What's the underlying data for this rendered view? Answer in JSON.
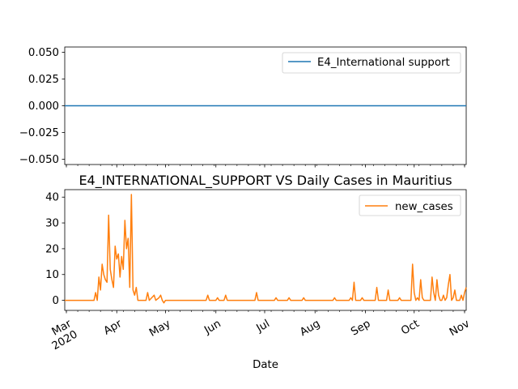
{
  "chart_data": [
    {
      "type": "line",
      "title": "",
      "xlabel": "",
      "ylabel": "",
      "ylim": [
        -0.055,
        0.055
      ],
      "yticks": [
        -0.05,
        -0.025,
        0.0,
        0.025,
        0.05
      ],
      "ytick_labels": [
        "−0.050",
        "−0.025",
        "0.000",
        "0.025",
        "0.050"
      ],
      "legend": {
        "placement": "upper-right",
        "entries": [
          "E4_International support"
        ]
      },
      "grid": false,
      "series": [
        {
          "name": "E4_International support",
          "color": "#1f77b4",
          "x": [
            "2020-02-29",
            "2020-11-02"
          ],
          "values": [
            0,
            0
          ]
        }
      ]
    },
    {
      "type": "line",
      "title": "E4_INTERNATIONAL_SUPPORT VS Daily Cases in Mauritius",
      "xlabel": "Date",
      "ylabel": "",
      "ylim": [
        -3.9,
        42.9
      ],
      "yticks": [
        0,
        10,
        20,
        30,
        40
      ],
      "ytick_labels": [
        "0",
        "10",
        "20",
        "30",
        "40"
      ],
      "xlim": [
        "2020-02-29",
        "2020-11-02"
      ],
      "xticks": [
        "2020-03-01",
        "2020-04-01",
        "2020-05-01",
        "2020-06-01",
        "2020-07-01",
        "2020-08-01",
        "2020-09-01",
        "2020-10-01",
        "2020-11-01"
      ],
      "xtick_labels": [
        "Mar\n2020",
        "Apr",
        "May",
        "Jun",
        "Jul",
        "Aug",
        "Sep",
        "Oct",
        "Nov"
      ],
      "legend": {
        "placement": "upper-right",
        "entries": [
          "new_cases"
        ]
      },
      "grid": false,
      "series": [
        {
          "name": "new_cases",
          "color": "#ff7f0e",
          "points": [
            [
              "2020-02-29",
              0
            ],
            [
              "2020-03-18",
              0
            ],
            [
              "2020-03-19",
              3
            ],
            [
              "2020-03-20",
              0
            ],
            [
              "2020-03-21",
              9
            ],
            [
              "2020-03-22",
              4
            ],
            [
              "2020-03-23",
              14
            ],
            [
              "2020-03-24",
              10
            ],
            [
              "2020-03-25",
              8
            ],
            [
              "2020-03-26",
              7
            ],
            [
              "2020-03-27",
              33
            ],
            [
              "2020-03-28",
              12
            ],
            [
              "2020-03-29",
              8
            ],
            [
              "2020-03-30",
              5
            ],
            [
              "2020-03-31",
              21
            ],
            [
              "2020-04-01",
              16
            ],
            [
              "2020-04-02",
              18
            ],
            [
              "2020-04-03",
              9
            ],
            [
              "2020-04-04",
              17
            ],
            [
              "2020-04-05",
              12
            ],
            [
              "2020-04-06",
              31
            ],
            [
              "2020-04-07",
              20
            ],
            [
              "2020-04-08",
              24
            ],
            [
              "2020-04-09",
              5
            ],
            [
              "2020-04-10",
              41
            ],
            [
              "2020-04-11",
              4
            ],
            [
              "2020-04-12",
              2
            ],
            [
              "2020-04-13",
              5
            ],
            [
              "2020-04-14",
              0
            ],
            [
              "2020-04-19",
              0
            ],
            [
              "2020-04-20",
              3
            ],
            [
              "2020-04-21",
              0
            ],
            [
              "2020-04-24",
              2
            ],
            [
              "2020-04-25",
              0
            ],
            [
              "2020-04-27",
              1
            ],
            [
              "2020-04-28",
              2
            ],
            [
              "2020-04-29",
              0
            ],
            [
              "2020-04-30",
              -1
            ],
            [
              "2020-05-01",
              0
            ],
            [
              "2020-05-26",
              0
            ],
            [
              "2020-05-27",
              2
            ],
            [
              "2020-05-28",
              0
            ],
            [
              "2020-06-01",
              0
            ],
            [
              "2020-06-02",
              1
            ],
            [
              "2020-06-03",
              0
            ],
            [
              "2020-06-06",
              0
            ],
            [
              "2020-06-07",
              2
            ],
            [
              "2020-06-08",
              0
            ],
            [
              "2020-06-25",
              0
            ],
            [
              "2020-06-26",
              3
            ],
            [
              "2020-06-27",
              0
            ],
            [
              "2020-07-07",
              0
            ],
            [
              "2020-07-08",
              1
            ],
            [
              "2020-07-09",
              0
            ],
            [
              "2020-07-15",
              0
            ],
            [
              "2020-07-16",
              1
            ],
            [
              "2020-07-17",
              0
            ],
            [
              "2020-07-24",
              0
            ],
            [
              "2020-07-25",
              1
            ],
            [
              "2020-07-26",
              0
            ],
            [
              "2020-08-12",
              0
            ],
            [
              "2020-08-13",
              1
            ],
            [
              "2020-08-14",
              0
            ],
            [
              "2020-08-22",
              0
            ],
            [
              "2020-08-23",
              1
            ],
            [
              "2020-08-24",
              0
            ],
            [
              "2020-08-25",
              7
            ],
            [
              "2020-08-26",
              0
            ],
            [
              "2020-08-29",
              0
            ],
            [
              "2020-08-30",
              1
            ],
            [
              "2020-08-31",
              0
            ],
            [
              "2020-09-07",
              0
            ],
            [
              "2020-09-08",
              5
            ],
            [
              "2020-09-09",
              0
            ],
            [
              "2020-09-14",
              0
            ],
            [
              "2020-09-15",
              4
            ],
            [
              "2020-09-16",
              0
            ],
            [
              "2020-09-21",
              0
            ],
            [
              "2020-09-22",
              1
            ],
            [
              "2020-09-23",
              0
            ],
            [
              "2020-09-29",
              0
            ],
            [
              "2020-09-30",
              14
            ],
            [
              "2020-10-01",
              3
            ],
            [
              "2020-10-02",
              0
            ],
            [
              "2020-10-03",
              1
            ],
            [
              "2020-10-04",
              0
            ],
            [
              "2020-10-05",
              8
            ],
            [
              "2020-10-06",
              1
            ],
            [
              "2020-10-07",
              0
            ],
            [
              "2020-10-11",
              0
            ],
            [
              "2020-10-12",
              9
            ],
            [
              "2020-10-13",
              3
            ],
            [
              "2020-10-14",
              0
            ],
            [
              "2020-10-15",
              8
            ],
            [
              "2020-10-16",
              2
            ],
            [
              "2020-10-17",
              0
            ],
            [
              "2020-10-18",
              0
            ],
            [
              "2020-10-19",
              2
            ],
            [
              "2020-10-20",
              0
            ],
            [
              "2020-10-21",
              1
            ],
            [
              "2020-10-22",
              6
            ],
            [
              "2020-10-23",
              10
            ],
            [
              "2020-10-24",
              0
            ],
            [
              "2020-10-25",
              1
            ],
            [
              "2020-10-26",
              4
            ],
            [
              "2020-10-27",
              0
            ],
            [
              "2020-10-29",
              0
            ],
            [
              "2020-10-30",
              2
            ],
            [
              "2020-10-31",
              0
            ],
            [
              "2020-11-01",
              3
            ],
            [
              "2020-11-02",
              5
            ]
          ]
        }
      ]
    }
  ]
}
